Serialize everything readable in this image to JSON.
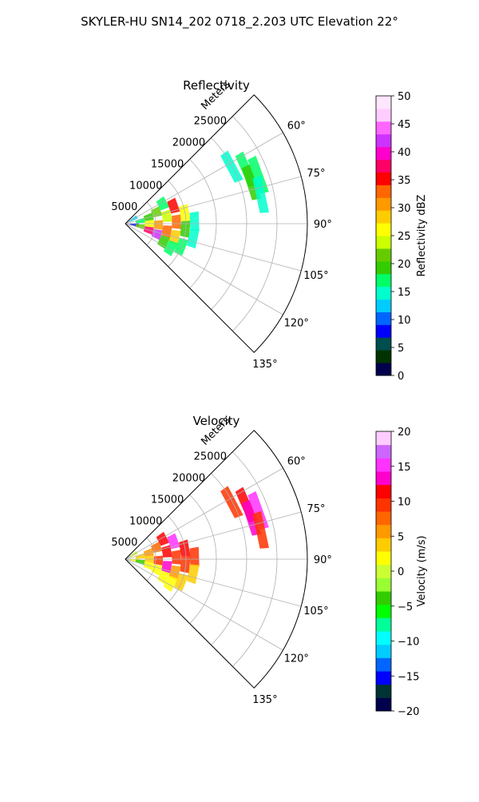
{
  "figure": {
    "title": "SKYLER-HU  SN14_202  0718_2.203 UTC Elevation 22°"
  },
  "chart_data": [
    {
      "type": "heatmap",
      "projection": "polar-sector",
      "title": "Reflectivity",
      "radial_label": "Meters",
      "radial_ticks": [
        "5000",
        "10000",
        "15000",
        "20000",
        "25000"
      ],
      "radial_tick_values": [
        5000,
        10000,
        15000,
        20000,
        25000
      ],
      "rmax": 30000,
      "angle_range_deg": [
        45,
        135
      ],
      "angle_ticks": [
        "60°",
        "75°",
        "90°",
        "105°",
        "120°",
        "135°"
      ],
      "angle_tick_values": [
        60,
        75,
        90,
        105,
        120,
        135
      ],
      "grid": true,
      "colorbar": {
        "label": "Reflectivity dBZ",
        "min": 0,
        "max": 50,
        "ticks": [
          "0",
          "5",
          "10",
          "15",
          "20",
          "25",
          "30",
          "35",
          "40",
          "45",
          "50"
        ],
        "tick_values": [
          0,
          5,
          10,
          15,
          20,
          25,
          30,
          35,
          40,
          45,
          50
        ]
      },
      "cells": [
        {
          "r": 1500,
          "az": 60,
          "v": 12
        },
        {
          "r": 1500,
          "az": 95,
          "v": 8
        },
        {
          "r": 2500,
          "az": 80,
          "v": 18
        },
        {
          "r": 2500,
          "az": 100,
          "v": 22
        },
        {
          "r": 4000,
          "az": 75,
          "v": 20
        },
        {
          "r": 4000,
          "az": 90,
          "v": 26
        },
        {
          "r": 4000,
          "az": 105,
          "v": 38
        },
        {
          "r": 5500,
          "az": 70,
          "v": 22
        },
        {
          "r": 5500,
          "az": 92,
          "v": 30
        },
        {
          "r": 5500,
          "az": 108,
          "v": 42
        },
        {
          "r": 7000,
          "az": 62,
          "v": 16
        },
        {
          "r": 7000,
          "az": 80,
          "v": 24
        },
        {
          "r": 7000,
          "az": 100,
          "v": 34
        },
        {
          "r": 7000,
          "az": 115,
          "v": 20
        },
        {
          "r": 8500,
          "az": 70,
          "v": 36
        },
        {
          "r": 8500,
          "az": 88,
          "v": 32
        },
        {
          "r": 8500,
          "az": 105,
          "v": 28
        },
        {
          "r": 8500,
          "az": 118,
          "v": 18
        },
        {
          "r": 10000,
          "az": 80,
          "v": 26
        },
        {
          "r": 10000,
          "az": 95,
          "v": 20
        },
        {
          "r": 10000,
          "az": 112,
          "v": 17
        },
        {
          "r": 11500,
          "az": 88,
          "v": 15
        },
        {
          "r": 11500,
          "az": 102,
          "v": 14
        },
        {
          "r": 20000,
          "az": 62,
          "v": 15
        },
        {
          "r": 22000,
          "az": 66,
          "v": 18
        },
        {
          "r": 22000,
          "az": 72,
          "v": 20
        },
        {
          "r": 23500,
          "az": 70,
          "v": 16
        },
        {
          "r": 23000,
          "az": 78,
          "v": 15
        }
      ]
    },
    {
      "type": "heatmap",
      "projection": "polar-sector",
      "title": "Velocity",
      "radial_label": "Meters",
      "radial_ticks": [
        "5000",
        "10000",
        "15000",
        "20000",
        "25000"
      ],
      "radial_tick_values": [
        5000,
        10000,
        15000,
        20000,
        25000
      ],
      "rmax": 30000,
      "angle_range_deg": [
        45,
        135
      ],
      "angle_ticks": [
        "60°",
        "75°",
        "90°",
        "105°",
        "120°",
        "135°"
      ],
      "angle_tick_values": [
        60,
        75,
        90,
        105,
        120,
        135
      ],
      "grid": true,
      "colorbar": {
        "label": "Velocity (m/s)",
        "min": -20,
        "max": 20,
        "ticks": [
          "−20",
          "−15",
          "−10",
          "−5",
          "0",
          "5",
          "10",
          "15",
          "20"
        ],
        "tick_values": [
          -20,
          -15,
          -10,
          -5,
          0,
          5,
          10,
          15,
          20
        ]
      },
      "cells": [
        {
          "r": 1500,
          "az": 60,
          "v": 0
        },
        {
          "r": 1500,
          "az": 95,
          "v": 2
        },
        {
          "r": 2500,
          "az": 80,
          "v": 3
        },
        {
          "r": 2500,
          "az": 100,
          "v": -3
        },
        {
          "r": 4000,
          "az": 75,
          "v": 5
        },
        {
          "r": 4000,
          "az": 90,
          "v": 4
        },
        {
          "r": 4000,
          "az": 105,
          "v": 2
        },
        {
          "r": 5500,
          "az": 70,
          "v": 8
        },
        {
          "r": 5500,
          "az": 92,
          "v": 10
        },
        {
          "r": 5500,
          "az": 108,
          "v": 1
        },
        {
          "r": 7000,
          "az": 62,
          "v": 12
        },
        {
          "r": 7000,
          "az": 80,
          "v": 12
        },
        {
          "r": 7000,
          "az": 100,
          "v": 14
        },
        {
          "r": 7000,
          "az": 115,
          "v": 2
        },
        {
          "r": 8500,
          "az": 70,
          "v": 15
        },
        {
          "r": 8500,
          "az": 88,
          "v": 10
        },
        {
          "r": 8500,
          "az": 105,
          "v": 5
        },
        {
          "r": 8500,
          "az": 118,
          "v": 1
        },
        {
          "r": 10000,
          "az": 80,
          "v": 11
        },
        {
          "r": 10000,
          "az": 95,
          "v": 10
        },
        {
          "r": 10000,
          "az": 112,
          "v": 3
        },
        {
          "r": 11500,
          "az": 88,
          "v": 9
        },
        {
          "r": 11500,
          "az": 102,
          "v": 4
        },
        {
          "r": 20000,
          "az": 62,
          "v": 10
        },
        {
          "r": 22000,
          "az": 66,
          "v": 11
        },
        {
          "r": 22000,
          "az": 72,
          "v": 14
        },
        {
          "r": 23500,
          "az": 70,
          "v": 16
        },
        {
          "r": 23000,
          "az": 78,
          "v": 9
        }
      ]
    }
  ],
  "colors": {
    "reflectivity_stops": [
      "#00004c",
      "#003300",
      "#004d4d",
      "#0000ff",
      "#0066ff",
      "#00ccff",
      "#00ffcc",
      "#00ff66",
      "#33cc00",
      "#66cc00",
      "#ccff00",
      "#ffff00",
      "#ffcc00",
      "#ff9900",
      "#ff6600",
      "#ff0000",
      "#ff0066",
      "#ff00cc",
      "#cc33ff",
      "#ff66ff",
      "#ffccff",
      "#ffe6ff"
    ],
    "velocity_stops": [
      "#00004c",
      "#003333",
      "#0000ff",
      "#0066ff",
      "#00ccff",
      "#00ffff",
      "#00ff99",
      "#00ff00",
      "#33cc00",
      "#99ff33",
      "#ccff33",
      "#ffff00",
      "#ffcc00",
      "#ff9900",
      "#ff6600",
      "#ff3300",
      "#ff0000",
      "#ff00cc",
      "#ff33ff",
      "#cc66ff",
      "#ffccff"
    ]
  }
}
